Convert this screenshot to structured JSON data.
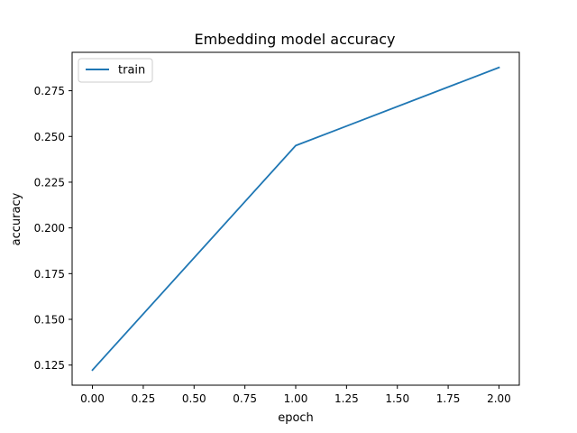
{
  "chart_data": {
    "type": "line",
    "title": "Embedding model accuracy",
    "xlabel": "epoch",
    "ylabel": "accuracy",
    "xlim": [
      -0.1,
      2.1
    ],
    "ylim": [
      0.114,
      0.296
    ],
    "xticks": [
      0.0,
      0.25,
      0.5,
      0.75,
      1.0,
      1.25,
      1.5,
      1.75,
      2.0
    ],
    "xtick_labels": [
      "0.00",
      "0.25",
      "0.50",
      "0.75",
      "1.00",
      "1.25",
      "1.50",
      "1.75",
      "2.00"
    ],
    "yticks": [
      0.125,
      0.15,
      0.175,
      0.2,
      0.225,
      0.25,
      0.275
    ],
    "ytick_labels": [
      "0.125",
      "0.150",
      "0.175",
      "0.200",
      "0.225",
      "0.250",
      "0.275"
    ],
    "grid": false,
    "legend_position": "top-left",
    "series": [
      {
        "name": "train",
        "color": "#1f77b4",
        "x": [
          0,
          1,
          2
        ],
        "y": [
          0.1223,
          0.245,
          0.2877
        ]
      }
    ]
  }
}
